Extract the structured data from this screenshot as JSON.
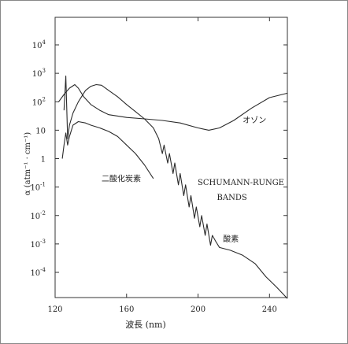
{
  "chart_data": {
    "type": "line",
    "title": "",
    "xlabel": "波長 (nm)",
    "ylabel": "α (atm⁻¹ · cm⁻¹)",
    "yscale": "log",
    "xlim": [
      120,
      250
    ],
    "ylim": [
      1e-05,
      1000
    ],
    "grid": false,
    "x_ticks": [
      {
        "value": 120,
        "label": "120"
      },
      {
        "value": 160,
        "label": "160"
      },
      {
        "value": 200,
        "label": "200"
      },
      {
        "value": 240,
        "label": "240"
      }
    ],
    "y_ticks": [
      {
        "value": 0.0001,
        "mant": "10",
        "exp": "-4"
      },
      {
        "value": 0.001,
        "mant": "10",
        "exp": "-3"
      },
      {
        "value": 0.01,
        "mant": "10",
        "exp": "-2"
      },
      {
        "value": 0.1,
        "mant": "10",
        "exp": "-1"
      },
      {
        "value": 1,
        "mant": "1",
        "exp": ""
      },
      {
        "value": 10,
        "mant": "10",
        "exp": ""
      },
      {
        "value": 100,
        "mant": "10",
        "exp": "2"
      },
      {
        "value": 1000,
        "mant": "10",
        "exp": "3"
      },
      {
        "value": 10000,
        "mant": "10",
        "exp": "4"
      }
    ],
    "series": [
      {
        "name": "オゾン",
        "points": [
          [
            122,
            100
          ],
          [
            125,
            180
          ],
          [
            128,
            300
          ],
          [
            131,
            400
          ],
          [
            133,
            300
          ],
          [
            136,
            150
          ],
          [
            140,
            80
          ],
          [
            145,
            50
          ],
          [
            150,
            35
          ],
          [
            160,
            28
          ],
          [
            170,
            25
          ],
          [
            180,
            22
          ],
          [
            190,
            18
          ],
          [
            200,
            12
          ],
          [
            206,
            10
          ],
          [
            212,
            12
          ],
          [
            220,
            22
          ],
          [
            230,
            60
          ],
          [
            240,
            140
          ],
          [
            250,
            200
          ]
        ]
      },
      {
        "name": "二酸化炭素",
        "points": [
          [
            124,
            1
          ],
          [
            125,
            3
          ],
          [
            126,
            8
          ],
          [
            127,
            3
          ],
          [
            128,
            6
          ],
          [
            130,
            15
          ],
          [
            133,
            20
          ],
          [
            137,
            18
          ],
          [
            140,
            15
          ],
          [
            145,
            12
          ],
          [
            150,
            9
          ],
          [
            155,
            6
          ],
          [
            160,
            3
          ],
          [
            165,
            1.5
          ],
          [
            170,
            0.6
          ],
          [
            175,
            0.2
          ]
        ]
      },
      {
        "name": "酸素",
        "points": [
          [
            125,
            50
          ],
          [
            126,
            800
          ],
          [
            127,
            5
          ],
          [
            128,
            15
          ],
          [
            130,
            40
          ],
          [
            133,
            100
          ],
          [
            137,
            250
          ],
          [
            140,
            350
          ],
          [
            143,
            400
          ],
          [
            146,
            380
          ],
          [
            150,
            250
          ],
          [
            155,
            150
          ],
          [
            160,
            80
          ],
          [
            165,
            45
          ],
          [
            170,
            25
          ],
          [
            175,
            12
          ],
          [
            178,
            5
          ],
          [
            180,
            1.5
          ],
          [
            181,
            3
          ],
          [
            183,
            0.7
          ],
          [
            184,
            1.5
          ],
          [
            186,
            0.3
          ],
          [
            187,
            0.7
          ],
          [
            189,
            0.12
          ],
          [
            190,
            0.3
          ],
          [
            192,
            0.05
          ],
          [
            193,
            0.12
          ],
          [
            195,
            0.02
          ],
          [
            196,
            0.05
          ],
          [
            198,
            0.008
          ],
          [
            199,
            0.02
          ],
          [
            201,
            0.004
          ],
          [
            202,
            0.01
          ],
          [
            204,
            0.002
          ],
          [
            205,
            0.005
          ],
          [
            207,
            0.0009
          ],
          [
            208,
            0.002
          ],
          [
            210,
            0.0012
          ],
          [
            212,
            0.00075
          ],
          [
            218,
            0.0006
          ],
          [
            225,
            0.0004
          ],
          [
            232,
            0.0002
          ],
          [
            238,
            7e-05
          ],
          [
            244,
            3e-05
          ],
          [
            250,
            1.2e-05
          ]
        ]
      }
    ],
    "annotations": [
      {
        "text": "オゾン",
        "x": 225,
        "y": 18,
        "anchor": "start"
      },
      {
        "text": "二酸化炭素",
        "x": 146,
        "y": 0.16,
        "anchor": "start"
      },
      {
        "text": "SCHUMANN-RUNGE",
        "x": 224,
        "y": 0.12,
        "anchor": "middle"
      },
      {
        "text": "BANDS",
        "x": 219,
        "y": 0.035,
        "anchor": "middle"
      },
      {
        "text": "酸素",
        "x": 214,
        "y": 0.0012,
        "anchor": "start"
      }
    ]
  }
}
